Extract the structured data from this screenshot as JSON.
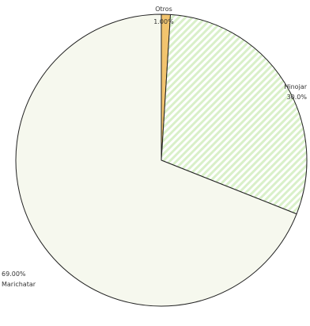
{
  "chart_data": {
    "type": "pie",
    "slices": [
      {
        "label": "Otros",
        "value": 1.0,
        "value_label": "1.00%",
        "color": "#f2c46e",
        "pattern": "none"
      },
      {
        "label": "Hinojar",
        "value": 30.0,
        "value_label": "30.0%",
        "color": "#d9f0c9",
        "pattern": "diagonal-stripes"
      },
      {
        "label": "Marichatar",
        "value": 69.0,
        "value_label": "69.00%",
        "color": "#f6f8ee",
        "pattern": "none"
      }
    ],
    "start_angle_deg": 0,
    "direction": "clockwise",
    "legend": "none",
    "stroke_color": "#222222"
  }
}
